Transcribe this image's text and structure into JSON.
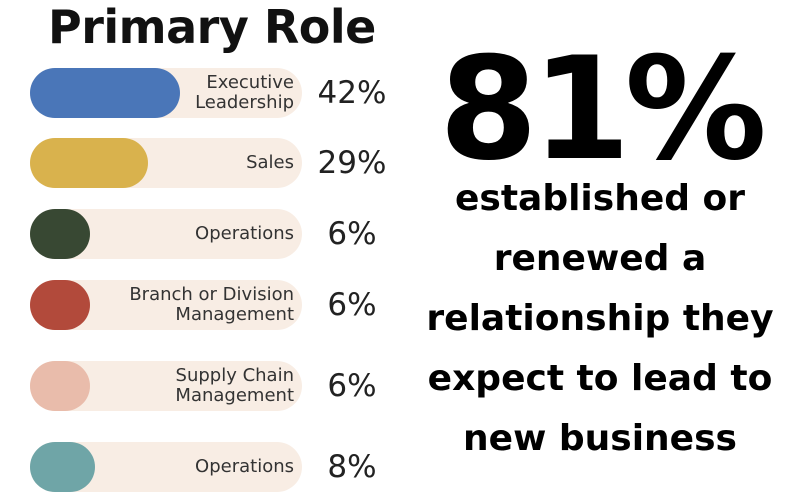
{
  "chart_data": {
    "type": "bar",
    "title": "Primary Role",
    "categories": [
      "Executive\nLeadership",
      "Sales",
      "Operations",
      "Branch or Division\nManagement",
      "Supply Chain\nManagement",
      "Operations"
    ],
    "values": [
      42,
      29,
      6,
      6,
      6,
      8
    ],
    "value_labels": [
      "42%",
      "29%",
      "6%",
      "6%",
      "6%",
      "8%"
    ],
    "colors": [
      "#4a76b8",
      "#d9b24d",
      "#384833",
      "#b24a3b",
      "#e9bcab",
      "#6fa5a7"
    ],
    "track_color": "#f8ede4",
    "ylim": [
      0,
      100
    ],
    "grid": false
  },
  "headline": {
    "big_stat": "81%",
    "lines": [
      "established or",
      "renewed a",
      "relationship they",
      "expect to lead to",
      "new business"
    ]
  }
}
